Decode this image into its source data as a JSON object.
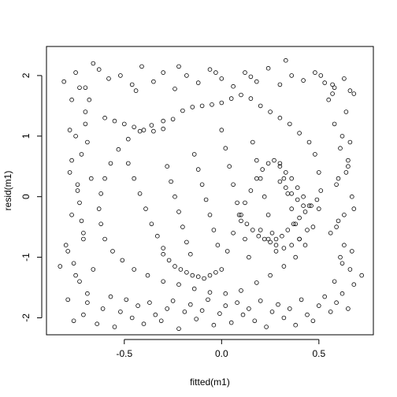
{
  "chart_data": {
    "type": "scatter",
    "title": "",
    "xlabel": "fitted(m1)",
    "ylabel": "resid(m1)",
    "xlim": [
      -0.9,
      0.78
    ],
    "ylim": [
      -2.28,
      2.48
    ],
    "x_ticks": [
      -0.5,
      0.0,
      0.5
    ],
    "x_tick_labels": [
      "-0.5",
      "0.0",
      "0.5"
    ],
    "y_ticks": [
      -2,
      -1,
      0,
      1,
      2
    ],
    "y_tick_labels": [
      "-2",
      "-1",
      "0",
      "1",
      "2"
    ],
    "grid": false,
    "legend": "none",
    "marker": "open-circle",
    "marker_color": "#000000",
    "series": [
      {
        "x": [
          -0.83,
          -0.79,
          -0.76,
          -0.73,
          -0.71,
          -0.69,
          -0.66,
          -0.64,
          -0.61,
          -0.57,
          -0.55,
          -0.52,
          -0.49,
          -0.46,
          -0.43,
          -0.4,
          -0.37,
          -0.34,
          -0.31,
          -0.28,
          -0.25,
          -0.22,
          -0.19,
          -0.16,
          -0.13,
          -0.1,
          -0.07,
          -0.04,
          -0.01,
          0.02,
          0.05,
          0.08,
          0.11,
          0.14,
          0.17,
          0.2,
          0.23,
          0.26,
          0.29,
          0.32,
          0.35,
          0.38,
          0.41,
          0.44,
          0.47,
          0.5,
          0.53,
          0.56,
          0.59,
          0.62,
          0.65,
          0.68,
          0.72,
          -0.8,
          -0.77,
          -0.74,
          -0.72,
          -0.7,
          -0.68,
          -0.75,
          -0.78,
          -0.73,
          -0.71,
          -0.76,
          -0.69,
          -0.74,
          -0.72,
          -0.77,
          -0.7,
          -0.79,
          -0.67,
          -0.73,
          -0.75,
          -0.71,
          -0.78,
          -0.69,
          0.55,
          0.58,
          0.61,
          0.64,
          0.67,
          0.6,
          0.63,
          0.66,
          0.57,
          0.62,
          0.65,
          0.59,
          0.68,
          0.56,
          0.61,
          0.64,
          0.58,
          0.66,
          0.6,
          0.63,
          0.67,
          0.57,
          0.62,
          0.65,
          0.59,
          -0.81,
          -0.75,
          -0.7,
          -0.63,
          -0.58,
          -0.52,
          -0.46,
          -0.41,
          -0.35,
          -0.3,
          -0.24,
          -0.18,
          -0.12,
          -0.06,
          0.0,
          0.06,
          0.12,
          0.18,
          0.24,
          0.3,
          0.36,
          0.42,
          0.48,
          0.53,
          0.58,
          0.63,
          0.68,
          -0.77,
          -0.66,
          -0.44,
          -0.22,
          -0.03,
          0.15,
          0.33,
          0.51,
          0.66,
          -0.6,
          -0.55,
          -0.5,
          -0.45,
          -0.4,
          -0.35,
          -0.3,
          -0.25,
          -0.2,
          -0.15,
          -0.1,
          -0.05,
          0.0,
          0.05,
          0.1,
          0.15,
          0.2,
          0.25,
          0.3,
          0.35,
          0.4,
          0.45,
          0.48,
          0.5,
          0.51,
          0.5,
          0.47,
          0.43,
          0.38,
          0.32,
          0.25,
          0.18,
          0.1,
          0.02,
          -0.06,
          -0.14,
          -0.22,
          -0.3,
          -0.38,
          -0.45,
          -0.51,
          -0.56,
          -0.6,
          -0.62,
          -0.63,
          -0.62,
          -0.6,
          -0.57,
          -0.53,
          -0.48,
          -0.42,
          -0.36,
          -0.3,
          -0.48,
          -0.45,
          -0.42,
          -0.39,
          -0.36,
          -0.33,
          -0.3,
          -0.28,
          -0.26,
          -0.24,
          -0.22,
          -0.2,
          -0.18,
          -0.16,
          -0.14,
          -0.12,
          -0.1,
          -0.08,
          -0.06,
          -0.04,
          -0.02,
          0.0,
          0.02,
          0.04,
          0.06,
          0.08,
          0.1,
          0.12,
          0.14,
          0.16,
          0.18,
          0.2,
          0.22,
          0.24,
          0.26,
          0.28,
          0.3,
          0.32,
          0.34,
          0.36,
          0.38,
          0.4,
          -0.3,
          -0.27,
          -0.24,
          -0.21,
          -0.18,
          -0.15,
          -0.12,
          -0.09,
          -0.06,
          -0.03,
          0.0,
          0.03,
          0.06,
          0.09,
          0.12,
          0.15,
          0.18,
          0.21,
          0.24,
          0.27,
          0.3,
          0.33,
          0.36,
          0.39,
          0.42,
          0.45,
          0.1,
          0.13,
          0.16,
          0.19,
          0.22,
          0.25,
          0.28,
          0.31,
          0.34,
          0.37,
          0.4,
          0.43,
          0.46,
          0.49,
          0.3,
          0.33,
          0.36,
          0.39,
          0.42,
          0.2,
          0.24,
          0.28,
          0.32,
          0.36,
          0.4,
          0.44
        ],
        "y": [
          -1.15,
          -1.7,
          -2.05,
          -1.4,
          -1.95,
          -1.75,
          -1.2,
          -2.1,
          -1.85,
          -1.65,
          -2.15,
          -1.9,
          -1.7,
          -2.0,
          -1.8,
          -2.1,
          -1.75,
          -1.95,
          -2.05,
          -1.85,
          -1.72,
          -2.18,
          -1.9,
          -1.78,
          -2.02,
          -1.88,
          -1.7,
          -2.12,
          -1.93,
          -1.8,
          -2.08,
          -1.75,
          -1.95,
          -1.85,
          -2.05,
          -1.72,
          -2.15,
          -1.9,
          -1.78,
          -2.0,
          -1.85,
          -2.12,
          -1.7,
          -1.95,
          -2.05,
          -1.8,
          -1.65,
          -1.9,
          -1.75,
          -1.6,
          -1.85,
          -1.45,
          -1.3,
          -0.8,
          -0.3,
          0.2,
          0.7,
          1.2,
          1.6,
          1.0,
          0.4,
          -0.1,
          -0.6,
          -1.1,
          0.9,
          0.1,
          -0.4,
          0.6,
          1.4,
          -0.9,
          0.3,
          1.8,
          -1.3,
          -0.7,
          1.1,
          -1.6,
          1.6,
          1.2,
          0.8,
          0.4,
          0.0,
          -0.4,
          -0.8,
          -1.2,
          1.85,
          1.0,
          0.6,
          0.2,
          -0.2,
          -0.6,
          -1.0,
          1.4,
          -1.4,
          0.9,
          0.3,
          -0.3,
          -0.9,
          1.7,
          -1.1,
          0.5,
          -0.5,
          1.9,
          2.05,
          1.8,
          2.1,
          1.95,
          2.0,
          1.85,
          2.15,
          1.9,
          2.05,
          1.78,
          2.0,
          1.88,
          2.1,
          1.95,
          1.82,
          2.05,
          1.9,
          2.12,
          1.85,
          2.0,
          1.92,
          2.05,
          1.88,
          1.8,
          1.95,
          1.7,
          1.6,
          2.2,
          1.75,
          2.15,
          2.05,
          1.98,
          2.25,
          2.0,
          1.75,
          1.3,
          1.25,
          1.2,
          1.15,
          1.1,
          1.08,
          1.12,
          1.28,
          1.42,
          1.48,
          1.5,
          1.52,
          1.55,
          1.62,
          1.68,
          1.62,
          1.5,
          1.4,
          1.3,
          1.2,
          1.05,
          0.9,
          0.7,
          0.4,
          0.1,
          -0.2,
          -0.5,
          -0.8,
          -1.0,
          -1.15,
          -1.3,
          -1.42,
          -1.55,
          -1.6,
          -1.58,
          -1.52,
          -1.45,
          -1.4,
          -1.3,
          -1.2,
          -1.05,
          -0.9,
          -0.7,
          -0.45,
          -0.2,
          0.05,
          0.3,
          0.55,
          0.78,
          0.95,
          1.08,
          1.18,
          1.25,
          0.55,
          0.3,
          0.05,
          -0.2,
          -0.45,
          -0.65,
          -0.85,
          0.5,
          0.25,
          0.0,
          -0.25,
          -0.5,
          -0.75,
          -0.95,
          0.7,
          0.45,
          0.2,
          -0.05,
          -0.3,
          -0.55,
          -0.8,
          1.1,
          0.8,
          0.5,
          0.2,
          -0.1,
          -0.4,
          -0.7,
          -1.0,
          0.9,
          0.6,
          0.3,
          0.0,
          -0.3,
          -0.6,
          -0.9,
          0.55,
          0.3,
          0.05,
          -0.2,
          -0.45,
          -0.7,
          -0.95,
          -1.05,
          -1.15,
          -1.2,
          -1.25,
          -1.3,
          -1.32,
          -1.35,
          -1.3,
          -1.25,
          -1.2,
          -0.9,
          -0.6,
          -0.3,
          -0.1,
          0.1,
          0.3,
          0.45,
          0.55,
          0.6,
          0.5,
          0.4,
          0.3,
          0.15,
          0.0,
          -0.15,
          -0.3,
          -0.45,
          -0.55,
          -0.65,
          -0.7,
          -0.75,
          -0.7,
          -0.65,
          -0.55,
          -0.45,
          -0.35,
          -0.25,
          -0.15,
          -0.05,
          0.25,
          0.15,
          0.05,
          -0.05,
          -0.15,
          -0.55,
          -0.7,
          -0.8,
          -0.85,
          -0.8,
          -0.7,
          -0.55
        ]
      }
    ]
  }
}
